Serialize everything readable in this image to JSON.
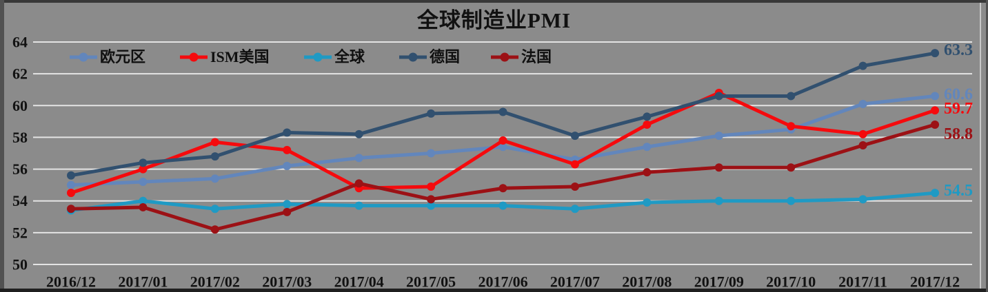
{
  "chart_data": {
    "type": "line",
    "title": "全球制造业PMI",
    "categories": [
      "2016/12",
      "2017/01",
      "2017/02",
      "2017/03",
      "2017/04",
      "2017/05",
      "2017/06",
      "2017/07",
      "2017/08",
      "2017/09",
      "2017/10",
      "2017/11",
      "2017/12"
    ],
    "xlabel": "",
    "ylabel": "",
    "ylim": [
      50,
      64
    ],
    "y_ticks": [
      64,
      62,
      60,
      58,
      56,
      54,
      52,
      50
    ],
    "grid": "horizontal",
    "legend_position": "top",
    "background_color": "#8B8B8B",
    "gridline_color": "#E4E4E4",
    "text_color": "#121212",
    "series": [
      {
        "key": "eurozone",
        "name": "欧元区",
        "color": "#6286BC",
        "values": [
          55.0,
          55.2,
          55.4,
          56.2,
          56.7,
          57.0,
          57.4,
          56.6,
          57.4,
          58.1,
          58.5,
          60.1,
          60.6
        ],
        "end_label": "60.6"
      },
      {
        "key": "ism-us",
        "name": "ISM美国",
        "color": "#F50A0D",
        "values": [
          54.5,
          56.0,
          57.7,
          57.2,
          54.8,
          54.9,
          57.8,
          56.3,
          58.8,
          60.8,
          58.7,
          58.2,
          59.7
        ],
        "end_label": "59.7"
      },
      {
        "key": "global",
        "name": "全球",
        "color": "#1F9AC4",
        "values": [
          53.4,
          54.0,
          53.5,
          53.8,
          53.7,
          53.7,
          53.7,
          53.5,
          53.9,
          54.0,
          54.0,
          54.1,
          54.5
        ],
        "end_label": "54.5"
      },
      {
        "key": "germany",
        "name": "德国",
        "color": "#31506F",
        "values": [
          55.6,
          56.4,
          56.8,
          58.3,
          58.2,
          59.5,
          59.6,
          58.1,
          59.3,
          60.6,
          60.6,
          62.5,
          63.3
        ],
        "end_label": "63.3"
      },
      {
        "key": "france",
        "name": "法国",
        "color": "#9C1115",
        "values": [
          53.5,
          53.6,
          52.2,
          53.3,
          55.1,
          54.1,
          54.8,
          54.9,
          55.8,
          56.1,
          56.1,
          57.5,
          58.8
        ],
        "end_label": "58.8"
      }
    ]
  }
}
